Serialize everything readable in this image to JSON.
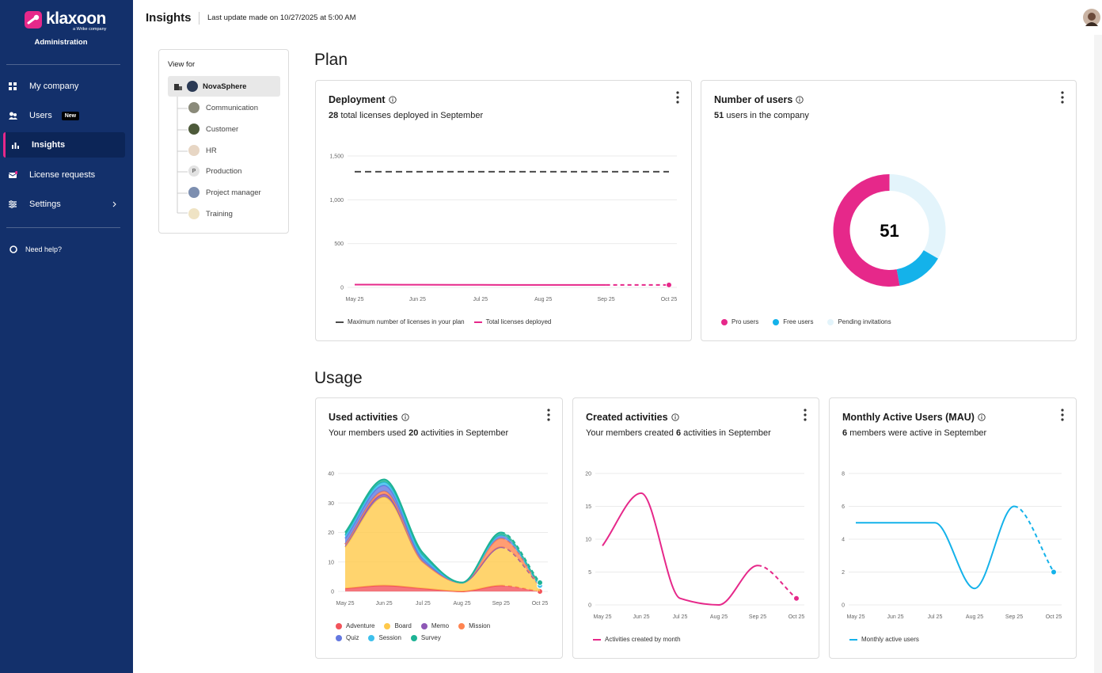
{
  "sidebar": {
    "brand": "klaxoon",
    "tagline": "a Wrike company",
    "section": "Administration",
    "nav": [
      {
        "label": "My company"
      },
      {
        "label": "Users",
        "badge": "New"
      },
      {
        "label": "Insights",
        "active": true
      },
      {
        "label": "License requests"
      },
      {
        "label": "Settings"
      }
    ],
    "help": "Need help?"
  },
  "header": {
    "title": "Insights",
    "last_update": "Last update made on 10/27/2025 at 5:00 AM"
  },
  "view_for": {
    "label": "View for",
    "root": "NovaSphere",
    "teams": [
      {
        "name": "Communication"
      },
      {
        "name": "Customer"
      },
      {
        "name": "HR"
      },
      {
        "name": "Production",
        "initial": "P"
      },
      {
        "name": "Project manager"
      },
      {
        "name": "Training"
      }
    ]
  },
  "sections": [
    "Plan",
    "Usage"
  ],
  "chart_data": [
    {
      "type": "line",
      "title": "Deployment",
      "subtitle": [
        28,
        "total licenses deployed in September"
      ],
      "categories": [
        "May 25",
        "Jun 25",
        "Jul 25",
        "Aug 25",
        "Sep 25",
        "Oct 25"
      ],
      "series": [
        {
          "name": "Maximum number of licenses in your plan",
          "color": "#4a4a4a",
          "dashed": true,
          "values": [
            1320,
            1320,
            1320,
            1320,
            1320,
            1320
          ]
        },
        {
          "name": "Total licenses deployed",
          "color": "#e6288a",
          "values": [
            32,
            30,
            29,
            28,
            28,
            28
          ]
        }
      ],
      "ylim": [
        0,
        1500
      ],
      "yticks": [
        0,
        500,
        {
          "value": 1000,
          "label": "1,000"
        },
        {
          "value": 1500,
          "label": "1,500"
        }
      ],
      "grid": true,
      "last_segment_dashed": true
    },
    {
      "type": "donut",
      "title": "Number of users",
      "subtitle": [
        51,
        "users in the company"
      ],
      "center_label": 51,
      "categories": [
        "Pro users",
        "Free users",
        "Pending invitations"
      ],
      "values": [
        27,
        7,
        17
      ],
      "colors": [
        "#e6288a",
        "#14b2ea",
        "#e3f4fb"
      ]
    },
    {
      "type": "area",
      "stacked": true,
      "title": "Used activities",
      "subtitle": [
        "Your members used",
        20,
        "activities in September"
      ],
      "categories": [
        "May 25",
        "Jun 25",
        "Jul 25",
        "Aug 25",
        "Sep 25",
        "Oct 25"
      ],
      "series": [
        {
          "name": "Adventure",
          "color": "#f2545b",
          "values": [
            1,
            2,
            1,
            0,
            2,
            0
          ]
        },
        {
          "name": "Board",
          "color": "#ffc94a",
          "values": [
            14,
            30,
            9,
            3,
            13,
            2
          ]
        },
        {
          "name": "Memo",
          "color": "#8e58b6",
          "values": [
            1,
            1,
            0,
            0,
            0,
            0
          ]
        },
        {
          "name": "Mission",
          "color": "#ff8450",
          "values": [
            0,
            1,
            0,
            0,
            3,
            0
          ]
        },
        {
          "name": "Quiz",
          "color": "#6478e0",
          "values": [
            2,
            2,
            1,
            0,
            1,
            0
          ]
        },
        {
          "name": "Session",
          "color": "#3ec0ec",
          "values": [
            1,
            1,
            1,
            0,
            0,
            0
          ]
        },
        {
          "name": "Survey",
          "color": "#1db395",
          "values": [
            1,
            1,
            1,
            0,
            1,
            1
          ]
        }
      ],
      "ylim": [
        0,
        40
      ],
      "yticks": [
        0,
        10,
        20,
        30,
        40
      ],
      "grid": true,
      "last_segment_dashed": true
    },
    {
      "type": "line",
      "title": "Created activities",
      "subtitle": [
        "Your members created",
        6,
        "activities in September"
      ],
      "categories": [
        "May 25",
        "Jun 25",
        "Jul 25",
        "Aug 25",
        "Sep 25",
        "Oct 25"
      ],
      "series": [
        {
          "name": "Activities created by month",
          "color": "#e6288a",
          "values": [
            9,
            17,
            1,
            0,
            6,
            1
          ]
        }
      ],
      "ylim": [
        0,
        20
      ],
      "yticks": [
        0,
        5,
        10,
        15,
        20
      ],
      "grid": true,
      "last_segment_dashed": true
    },
    {
      "type": "line",
      "title": "Monthly Active Users (MAU)",
      "subtitle": [
        6,
        "members were active in September"
      ],
      "categories": [
        "May 25",
        "Jun 25",
        "Jul 25",
        "Aug 25",
        "Sep 25",
        "Oct 25"
      ],
      "series": [
        {
          "name": "Monthly active users",
          "color": "#14b2ea",
          "values": [
            5,
            5,
            5,
            1,
            6,
            2
          ]
        }
      ],
      "ylim": [
        0,
        8
      ],
      "yticks": [
        0,
        2,
        4,
        6,
        8
      ],
      "grid": true,
      "last_segment_dashed": true
    }
  ]
}
